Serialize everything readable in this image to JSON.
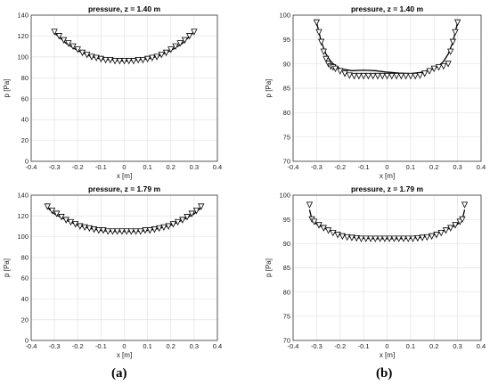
{
  "chart_data": [
    {
      "type": "line",
      "title": "pressure, z = 1.40 m",
      "xlabel": "x [m]",
      "ylabel": "p [Pa]",
      "xlim": [
        -0.4,
        0.4
      ],
      "ylim": [
        0,
        140
      ],
      "xticks": [
        "-0.4",
        "-0.3",
        "-0.2",
        "-0.1",
        "0",
        "0.1",
        "0.2",
        "0.3",
        "0.4"
      ],
      "yticks": [
        "0",
        "20",
        "40",
        "60",
        "80",
        "100",
        "120",
        "140"
      ],
      "grid": true,
      "series": [
        {
          "style": "line",
          "x": [
            -0.3,
            -0.25,
            -0.2,
            -0.15,
            -0.1,
            -0.05,
            0,
            0.05,
            0.1,
            0.15,
            0.2,
            0.25,
            0.3
          ],
          "y": [
            123,
            113,
            106,
            101,
            98,
            97,
            96,
            97,
            98,
            101,
            106,
            113,
            124
          ]
        },
        {
          "style": "markers",
          "x": [
            -0.3,
            -0.28,
            -0.26,
            -0.24,
            -0.22,
            -0.2,
            -0.18,
            -0.16,
            -0.14,
            -0.12,
            -0.1,
            -0.08,
            -0.06,
            -0.04,
            -0.02,
            0,
            0.02,
            0.04,
            0.06,
            0.08,
            0.1,
            0.12,
            0.14,
            0.16,
            0.18,
            0.2,
            0.22,
            0.24,
            0.26,
            0.28,
            0.3
          ],
          "y": [
            124,
            120,
            116,
            113,
            110,
            107,
            104,
            102,
            100,
            99,
            98,
            97,
            97,
            96,
            96,
            96,
            96,
            96,
            97,
            97,
            98,
            99,
            100,
            102,
            104,
            107,
            110,
            113,
            116,
            120,
            124
          ]
        }
      ]
    },
    {
      "type": "line",
      "title": "pressure, z = 1.40 m",
      "xlabel": "x [m]",
      "ylabel": "p [Pa]",
      "xlim": [
        -0.4,
        0.4
      ],
      "ylim": [
        70,
        100
      ],
      "xticks": [
        "-0.4",
        "-0.3",
        "-0.2",
        "-0.1",
        "0",
        "0.1",
        "0.2",
        "0.3",
        "0.4"
      ],
      "yticks": [
        "70",
        "75",
        "80",
        "85",
        "90",
        "95",
        "100"
      ],
      "grid": true,
      "series": [
        {
          "style": "line",
          "x": [
            -0.3,
            -0.28,
            -0.26,
            -0.24,
            -0.22,
            -0.2,
            -0.15,
            -0.1,
            -0.05,
            0,
            0.05,
            0.1,
            0.15,
            0.2,
            0.22,
            0.24,
            0.26,
            0.28,
            0.3
          ],
          "y": [
            98.5,
            94.5,
            92,
            90.5,
            89.6,
            89,
            88.6,
            88.7,
            88.6,
            88.3,
            88.1,
            88,
            88.3,
            89,
            89.6,
            90.5,
            92,
            94.5,
            98.5
          ]
        },
        {
          "style": "markers",
          "x": [
            -0.3,
            -0.29,
            -0.28,
            -0.27,
            -0.26,
            -0.25,
            -0.24,
            -0.23,
            -0.22,
            -0.2,
            -0.18,
            -0.16,
            -0.14,
            -0.12,
            -0.1,
            -0.08,
            -0.06,
            -0.04,
            -0.02,
            0,
            0.02,
            0.04,
            0.06,
            0.08,
            0.1,
            0.12,
            0.14,
            0.16,
            0.18,
            0.2,
            0.22,
            0.24,
            0.26,
            0.27,
            0.28,
            0.29,
            0.3
          ],
          "y": [
            98.5,
            96.5,
            94.5,
            92.5,
            91,
            90,
            89.5,
            89.3,
            89,
            88.5,
            88,
            87.6,
            87.5,
            87.5,
            87.5,
            87.5,
            87.5,
            87.5,
            87.5,
            87.5,
            87.5,
            87.5,
            87.5,
            87.5,
            87.5,
            87.5,
            87.6,
            88,
            88.5,
            89,
            89.3,
            89.5,
            90,
            92.5,
            94.5,
            96.5,
            98.5
          ]
        }
      ]
    },
    {
      "type": "line",
      "title": "pressure, z = 1.79 m",
      "xlabel": "x [m]",
      "ylabel": "p [Pa]",
      "xlim": [
        -0.4,
        0.4
      ],
      "ylim": [
        0,
        140
      ],
      "xticks": [
        "-0.4",
        "-0.3",
        "-0.2",
        "-0.1",
        "0",
        "0.1",
        "0.2",
        "0.3",
        "0.4"
      ],
      "yticks": [
        "0",
        "20",
        "40",
        "60",
        "80",
        "100",
        "120",
        "140"
      ],
      "grid": true,
      "series": [
        {
          "style": "line",
          "x": [
            -0.33,
            -0.3,
            -0.25,
            -0.2,
            -0.15,
            -0.1,
            -0.05,
            0,
            0.05,
            0.1,
            0.15,
            0.2,
            0.25,
            0.3,
            0.33
          ],
          "y": [
            128,
            122,
            116,
            111,
            108,
            106,
            105,
            105,
            105,
            106,
            108,
            111,
            116,
            122,
            128
          ]
        },
        {
          "style": "markers",
          "x": [
            -0.33,
            -0.31,
            -0.29,
            -0.27,
            -0.25,
            -0.23,
            -0.21,
            -0.19,
            -0.17,
            -0.15,
            -0.13,
            -0.11,
            -0.09,
            -0.07,
            -0.05,
            -0.03,
            -0.01,
            0.01,
            0.03,
            0.05,
            0.07,
            0.09,
            0.11,
            0.13,
            0.15,
            0.17,
            0.19,
            0.21,
            0.23,
            0.25,
            0.27,
            0.29,
            0.31,
            0.33
          ],
          "y": [
            129,
            125,
            122,
            119,
            116,
            114,
            112,
            110,
            109,
            108,
            107,
            106,
            106,
            105,
            105,
            105,
            105,
            105,
            105,
            105,
            105,
            106,
            106,
            107,
            108,
            109,
            110,
            112,
            114,
            116,
            119,
            122,
            125,
            129
          ]
        }
      ]
    },
    {
      "type": "line",
      "title": "pressure, z = 1.79 m",
      "xlabel": "x [m]",
      "ylabel": "p [Pa]",
      "xlim": [
        -0.4,
        0.4
      ],
      "ylim": [
        70,
        100
      ],
      "xticks": [
        "-0.4",
        "-0.3",
        "-0.2",
        "-0.1",
        "0",
        "0.1",
        "0.2",
        "0.3",
        "0.4"
      ],
      "yticks": [
        "70",
        "75",
        "80",
        "85",
        "90",
        "95",
        "100"
      ],
      "grid": true,
      "series": [
        {
          "style": "line",
          "x": [
            -0.33,
            -0.32,
            -0.3,
            -0.25,
            -0.2,
            -0.15,
            -0.1,
            -0.05,
            0,
            0.05,
            0.1,
            0.15,
            0.2,
            0.25,
            0.3,
            0.32,
            0.33
          ],
          "y": [
            97,
            95,
            94,
            92.8,
            91.8,
            91.3,
            91.1,
            91,
            91,
            91,
            91.1,
            91.3,
            91.8,
            92.8,
            94,
            95,
            97
          ]
        },
        {
          "style": "markers",
          "x": [
            -0.33,
            -0.32,
            -0.31,
            -0.29,
            -0.27,
            -0.25,
            -0.23,
            -0.21,
            -0.19,
            -0.17,
            -0.15,
            -0.13,
            -0.11,
            -0.09,
            -0.07,
            -0.05,
            -0.03,
            -0.01,
            0.01,
            0.03,
            0.05,
            0.07,
            0.09,
            0.11,
            0.13,
            0.15,
            0.17,
            0.19,
            0.21,
            0.23,
            0.25,
            0.27,
            0.29,
            0.31,
            0.32,
            0.33
          ],
          "y": [
            98,
            95,
            94.5,
            93.8,
            93.2,
            92.7,
            92.2,
            91.8,
            91.5,
            91.3,
            91.2,
            91.1,
            91,
            91,
            91,
            91,
            91,
            91,
            91,
            91,
            91,
            91,
            91,
            91,
            91.1,
            91.2,
            91.3,
            91.5,
            91.8,
            92.2,
            92.7,
            93.2,
            93.8,
            94.5,
            95,
            98
          ]
        }
      ]
    }
  ],
  "captions": [
    "(a)",
    "(b)"
  ]
}
